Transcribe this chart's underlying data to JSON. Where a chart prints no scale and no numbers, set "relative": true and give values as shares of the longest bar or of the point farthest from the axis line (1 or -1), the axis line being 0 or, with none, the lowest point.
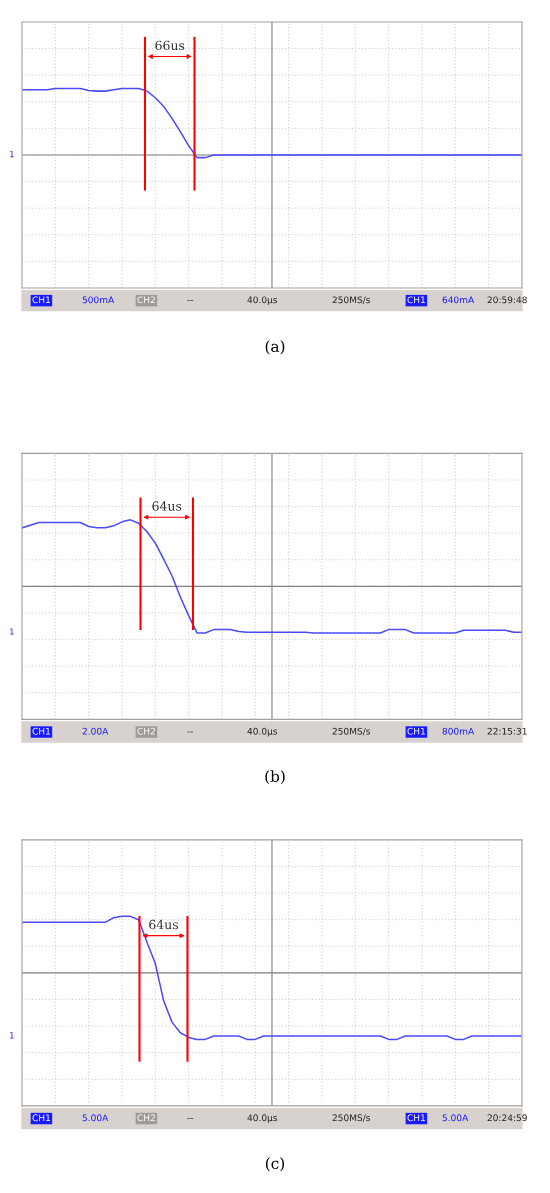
{
  "chart_data": [
    {
      "type": "line",
      "title": "(a)",
      "relative": true,
      "grid": true,
      "categories": [
        null,
        null,
        null,
        null,
        null,
        null,
        null,
        null,
        null,
        null,
        null,
        null,
        null,
        null,
        null,
        null,
        null,
        null,
        null,
        null,
        null,
        null,
        null,
        null,
        null,
        null,
        null,
        null,
        null,
        null,
        null,
        null,
        null,
        null,
        null,
        null,
        null,
        null,
        null,
        null,
        null,
        null,
        null,
        null,
        null,
        null,
        null,
        null,
        null,
        null,
        null,
        null,
        null,
        null,
        null,
        null,
        null,
        null,
        null,
        null,
        null
      ],
      "series": [
        {
          "color": "#4a4aff",
          "values": [
            0.98,
            0.98,
            0.98,
            0.98,
            1,
            1,
            1,
            1,
            0.97,
            0.96,
            0.96,
            0.98,
            1,
            1,
            1,
            0.96,
            0.86,
            0.73,
            0.55,
            0.35,
            0.14,
            -0.04,
            -0.04,
            0,
            0,
            0,
            0,
            0,
            0,
            0,
            0,
            0,
            0,
            0,
            0,
            0,
            0,
            0,
            0,
            0,
            0,
            0,
            0,
            0,
            0,
            0,
            0,
            0,
            0,
            0,
            0,
            0,
            0,
            0,
            0,
            0,
            0,
            0,
            0,
            0,
            0
          ]
        }
      ],
      "annotations": [
        "1",
        "CH1",
        "500mA",
        "CH2",
        "--",
        "40.0µs",
        "250MS/s",
        "CH1",
        "640mA",
        "20:59:48",
        "66us"
      ]
    },
    {
      "type": "line",
      "title": "(b)",
      "relative": true,
      "grid": true,
      "categories": [
        null,
        null,
        null,
        null,
        null,
        null,
        null,
        null,
        null,
        null,
        null,
        null,
        null,
        null,
        null,
        null,
        null,
        null,
        null,
        null,
        null,
        null,
        null,
        null,
        null,
        null,
        null,
        null,
        null,
        null,
        null,
        null,
        null,
        null,
        null,
        null,
        null,
        null,
        null,
        null,
        null,
        null,
        null,
        null,
        null,
        null,
        null,
        null,
        null,
        null,
        null,
        null,
        null,
        null,
        null,
        null,
        null,
        null,
        null,
        null,
        null
      ],
      "series": [
        {
          "color": "#4a4aff",
          "values": [
            0.88,
            0.92,
            0.96,
            0.96,
            0.96,
            0.96,
            0.96,
            0.96,
            0.9,
            0.88,
            0.88,
            0.91,
            0.97,
            1,
            0.95,
            0.82,
            0.65,
            0.41,
            0.16,
            -0.16,
            -0.44,
            -0.7,
            -0.7,
            -0.65,
            -0.65,
            -0.65,
            -0.68,
            -0.69,
            -0.69,
            -0.69,
            -0.69,
            -0.69,
            -0.69,
            -0.69,
            -0.69,
            -0.7,
            -0.7,
            -0.7,
            -0.7,
            -0.7,
            -0.7,
            -0.7,
            -0.7,
            -0.7,
            -0.65,
            -0.65,
            -0.65,
            -0.7,
            -0.7,
            -0.7,
            -0.7,
            -0.7,
            -0.7,
            -0.66,
            -0.66,
            -0.66,
            -0.66,
            -0.66,
            -0.66,
            -0.69,
            -0.69
          ]
        }
      ],
      "annotations": [
        "1",
        "CH1",
        "2.00A",
        "CH2",
        "--",
        "40.0µs",
        "250MS/s",
        "CH1",
        "800mA",
        "22:15:31",
        "64us"
      ]
    },
    {
      "type": "line",
      "title": "(c)",
      "relative": true,
      "grid": true,
      "categories": [
        null,
        null,
        null,
        null,
        null,
        null,
        null,
        null,
        null,
        null,
        null,
        null,
        null,
        null,
        null,
        null,
        null,
        null,
        null,
        null,
        null,
        null,
        null,
        null,
        null,
        null,
        null,
        null,
        null,
        null,
        null,
        null,
        null,
        null,
        null,
        null,
        null,
        null,
        null,
        null,
        null,
        null,
        null,
        null,
        null,
        null,
        null,
        null,
        null,
        null,
        null,
        null,
        null,
        null,
        null,
        null,
        null,
        null,
        null,
        null,
        null
      ],
      "series": [
        {
          "color": "#4a4aff",
          "values": [
            0.76,
            0.76,
            0.76,
            0.76,
            0.76,
            0.76,
            0.76,
            0.76,
            0.76,
            0.76,
            0.76,
            0.83,
            0.85,
            0.85,
            0.8,
            0.46,
            0.14,
            -0.42,
            -0.74,
            -0.9,
            -0.97,
            -1,
            -1,
            -0.95,
            -0.95,
            -0.95,
            -0.95,
            -1,
            -1,
            -0.95,
            -0.95,
            -0.95,
            -0.95,
            -0.95,
            -0.95,
            -0.95,
            -0.95,
            -0.95,
            -0.95,
            -0.95,
            -0.95,
            -0.95,
            -0.95,
            -0.95,
            -1,
            -1,
            -0.95,
            -0.95,
            -0.95,
            -0.95,
            -0.95,
            -0.95,
            -1,
            -1,
            -0.95,
            -0.95,
            -0.95,
            -0.95,
            -0.95,
            -0.95,
            -0.95
          ]
        }
      ],
      "annotations": [
        "1",
        "CH1",
        "5.00A",
        "CH2",
        "--",
        "40.0µs",
        "250MS/s",
        "CH1",
        "5.00A",
        "20:24:59",
        "64us"
      ]
    }
  ]
}
